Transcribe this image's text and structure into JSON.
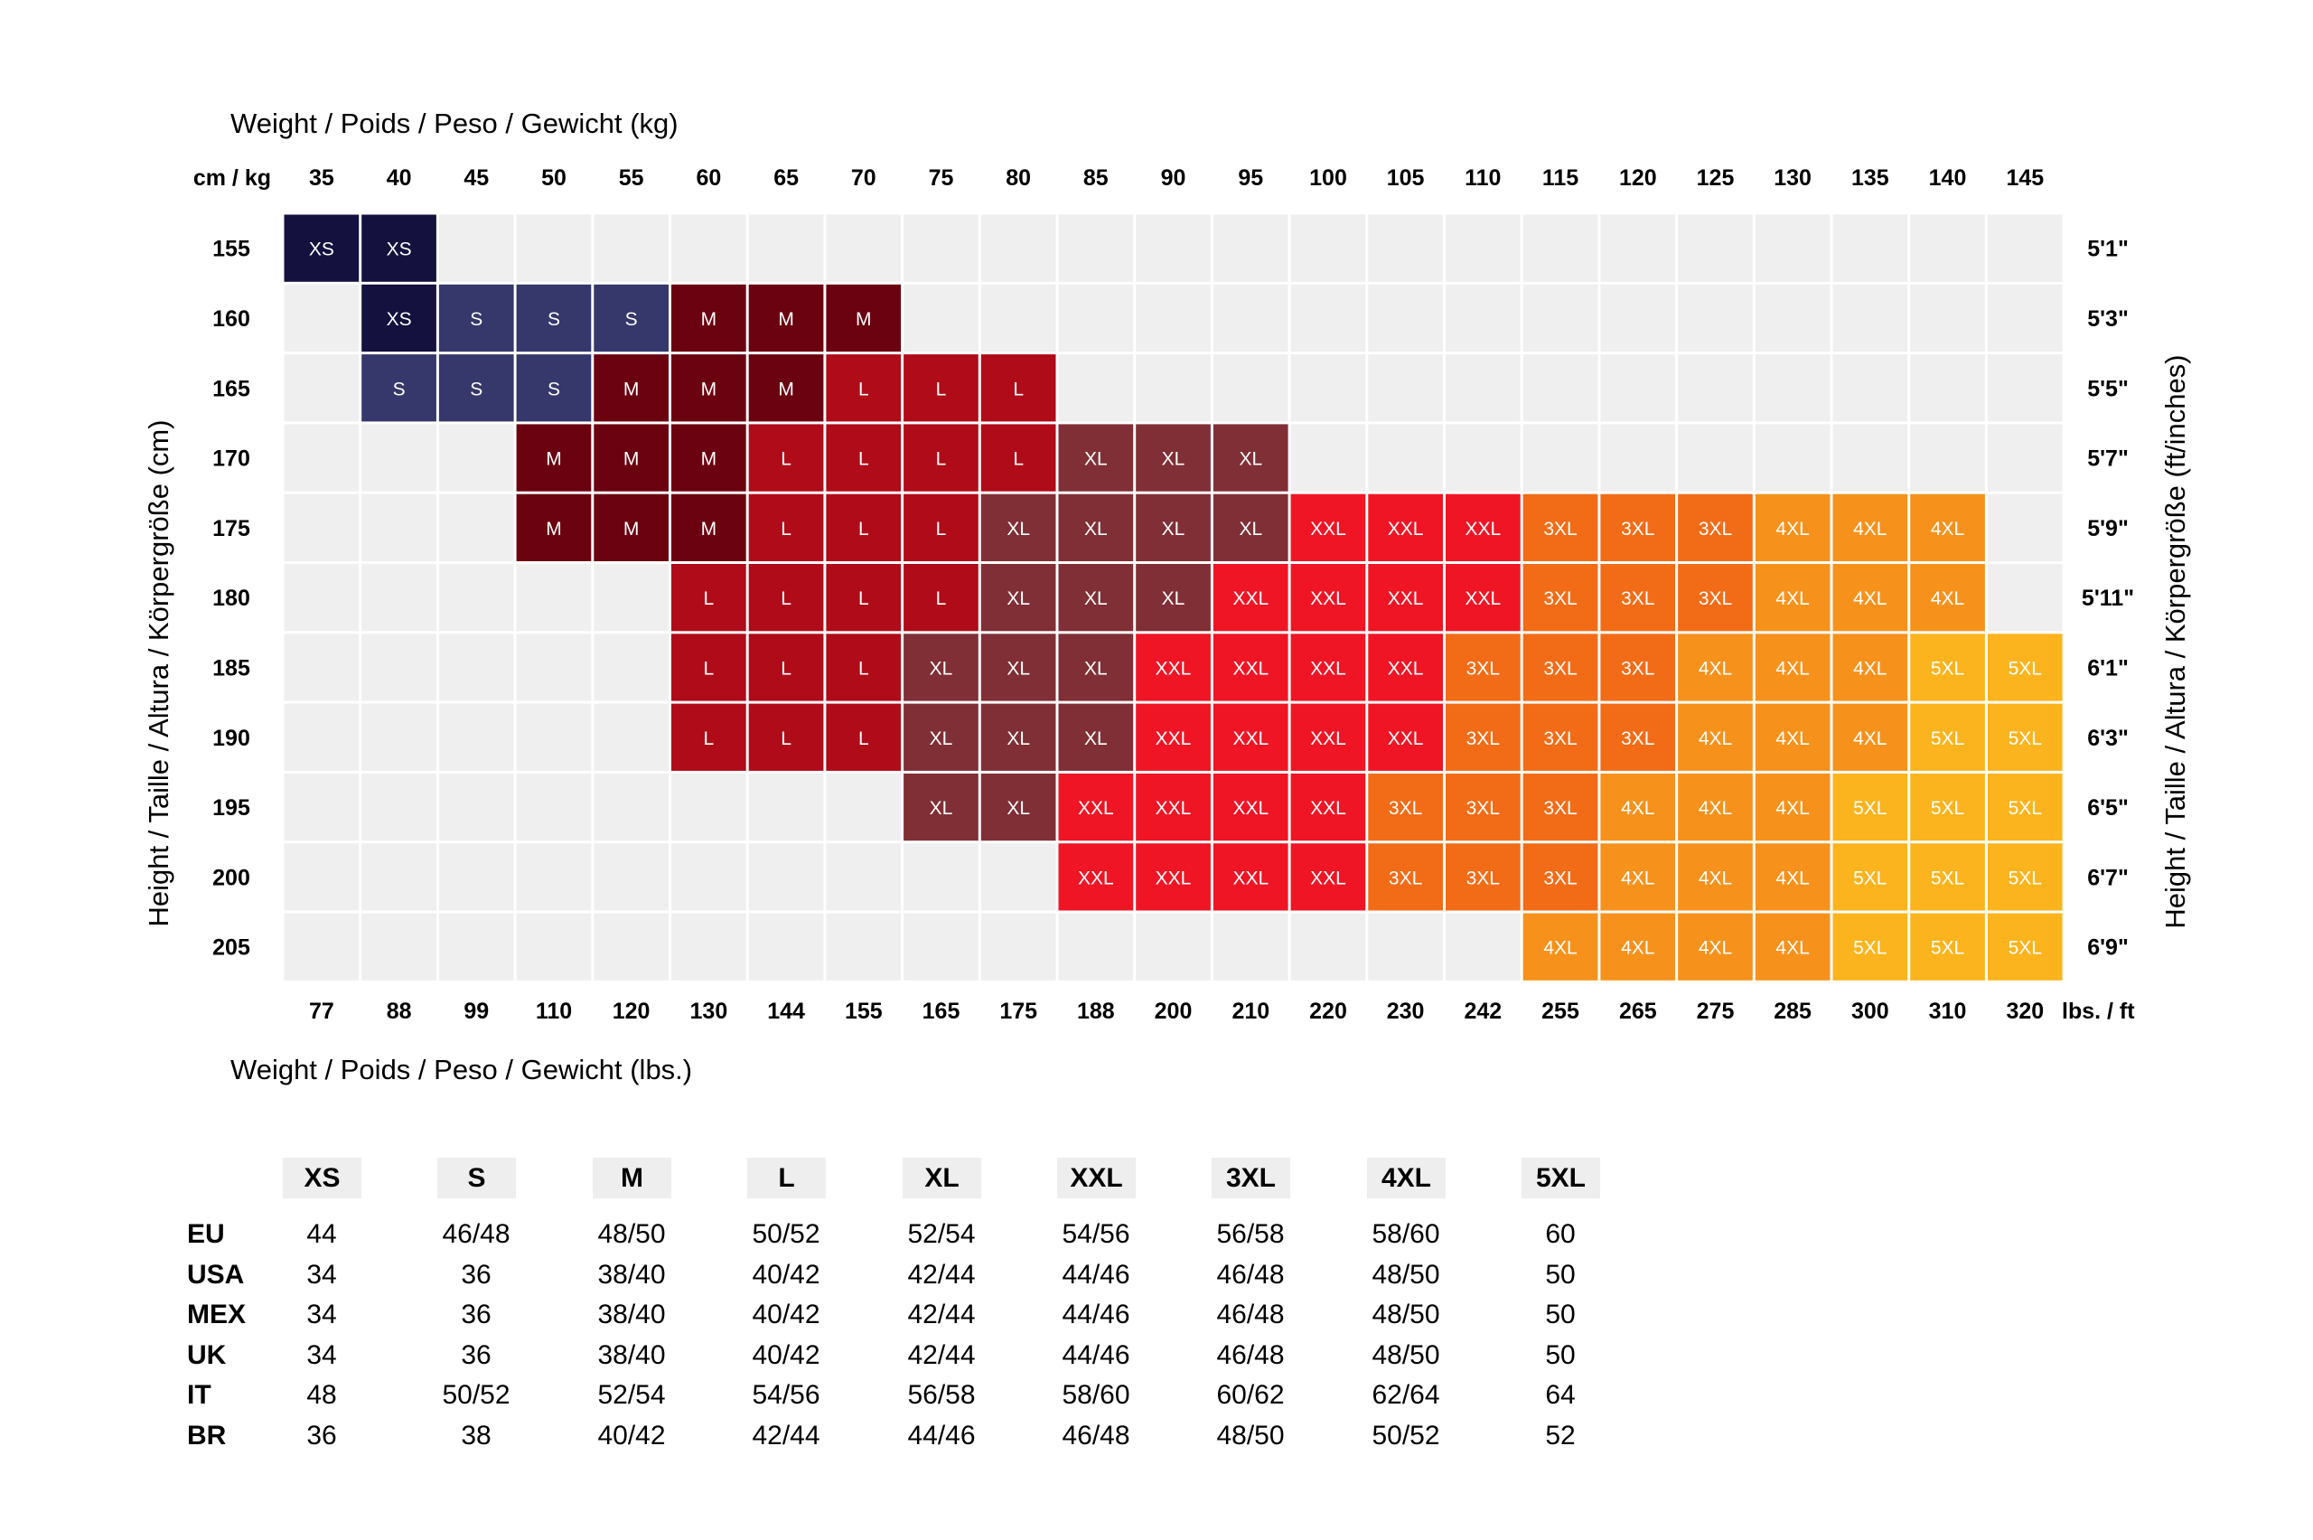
{
  "chart_data": {
    "type": "heatmap",
    "title_top": "Weight / Poids / Peso / Gewicht (kg)",
    "title_bottom": "Weight / Poids / Peso / Gewicht (lbs.)",
    "ylabel_left": "Height / Taille / Altura / Körpergröße (cm)",
    "ylabel_right": "Height / Taille / Altura / Körpergröße (ft/inches)",
    "corner_top": "cm / kg",
    "corner_bottom": "lbs. / ft",
    "kg": [
      "35",
      "40",
      "45",
      "50",
      "55",
      "60",
      "65",
      "70",
      "75",
      "80",
      "85",
      "90",
      "95",
      "100",
      "105",
      "110",
      "115",
      "120",
      "125",
      "130",
      "135",
      "140",
      "145"
    ],
    "lbs": [
      "77",
      "88",
      "99",
      "110",
      "120",
      "130",
      "144",
      "155",
      "165",
      "175",
      "188",
      "200",
      "210",
      "220",
      "230",
      "242",
      "255",
      "265",
      "275",
      "285",
      "300",
      "310",
      "320"
    ],
    "cm": [
      "155",
      "160",
      "165",
      "170",
      "175",
      "180",
      "185",
      "190",
      "195",
      "200",
      "205"
    ],
    "ft": [
      "5'1\"",
      "5'3\"",
      "5'5\"",
      "5'7\"",
      "5'9\"",
      "5'11\"",
      "6'1\"",
      "6'3\"",
      "6'5\"",
      "6'7\"",
      "6'9\""
    ],
    "size_colors": {
      "XS": "#14113f",
      "S": "#36376b",
      "M": "#6b0210",
      "L": "#b00b18",
      "XL": "#802f36",
      "XXL": "#ef1525",
      "3XL": "#f26c17",
      "4XL": "#f6921c",
      "5XL": "#fbb41d"
    },
    "empty_color": "#efefef",
    "grid": [
      [
        "XS",
        "XS",
        "",
        "",
        "",
        "",
        "",
        "",
        "",
        "",
        "",
        "",
        "",
        "",
        "",
        "",
        "",
        "",
        "",
        "",
        "",
        "",
        ""
      ],
      [
        "",
        "XS",
        "S",
        "S",
        "S",
        "M",
        "M",
        "M",
        "",
        "",
        "",
        "",
        "",
        "",
        "",
        "",
        "",
        "",
        "",
        "",
        "",
        "",
        ""
      ],
      [
        "",
        "S",
        "S",
        "S",
        "M",
        "M",
        "M",
        "L",
        "L",
        "L",
        "",
        "",
        "",
        "",
        "",
        "",
        "",
        "",
        "",
        "",
        "",
        "",
        ""
      ],
      [
        "",
        "",
        "",
        "M",
        "M",
        "M",
        "L",
        "L",
        "L",
        "L",
        "XL",
        "XL",
        "XL",
        "",
        "",
        "",
        "",
        "",
        "",
        "",
        "",
        "",
        ""
      ],
      [
        "",
        "",
        "",
        "M",
        "M",
        "M",
        "L",
        "L",
        "L",
        "XL",
        "XL",
        "XL",
        "XL",
        "XXL",
        "XXL",
        "XXL",
        "3XL",
        "3XL",
        "3XL",
        "4XL",
        "4XL",
        "4XL",
        ""
      ],
      [
        "",
        "",
        "",
        "",
        "",
        "L",
        "L",
        "L",
        "L",
        "XL",
        "XL",
        "XL",
        "XXL",
        "XXL",
        "XXL",
        "XXL",
        "3XL",
        "3XL",
        "3XL",
        "4XL",
        "4XL",
        "4XL",
        ""
      ],
      [
        "",
        "",
        "",
        "",
        "",
        "L",
        "L",
        "L",
        "XL",
        "XL",
        "XL",
        "XXL",
        "XXL",
        "XXL",
        "XXL",
        "3XL",
        "3XL",
        "3XL",
        "4XL",
        "4XL",
        "4XL",
        "5XL",
        "5XL"
      ],
      [
        "",
        "",
        "",
        "",
        "",
        "L",
        "L",
        "L",
        "XL",
        "XL",
        "XL",
        "XXL",
        "XXL",
        "XXL",
        "XXL",
        "3XL",
        "3XL",
        "3XL",
        "4XL",
        "4XL",
        "4XL",
        "5XL",
        "5XL"
      ],
      [
        "",
        "",
        "",
        "",
        "",
        "",
        "",
        "",
        "XL",
        "XL",
        "XXL",
        "XXL",
        "XXL",
        "XXL",
        "3XL",
        "3XL",
        "3XL",
        "4XL",
        "4XL",
        "4XL",
        "5XL",
        "5XL",
        "5XL"
      ],
      [
        "",
        "",
        "",
        "",
        "",
        "",
        "",
        "",
        "",
        "",
        "XXL",
        "XXL",
        "XXL",
        "XXL",
        "3XL",
        "3XL",
        "3XL",
        "4XL",
        "4XL",
        "4XL",
        "5XL",
        "5XL",
        "5XL"
      ],
      [
        "",
        "",
        "",
        "",
        "",
        "",
        "",
        "",
        "",
        "",
        "",
        "",
        "",
        "",
        "",
        "",
        "4XL",
        "4XL",
        "4XL",
        "4XL",
        "5XL",
        "5XL",
        "5XL"
      ]
    ]
  },
  "conversion": {
    "sizes": [
      "XS",
      "S",
      "M",
      "L",
      "XL",
      "XXL",
      "3XL",
      "4XL",
      "5XL"
    ],
    "rows": [
      {
        "region": "EU",
        "values": [
          "44",
          "46/48",
          "48/50",
          "50/52",
          "52/54",
          "54/56",
          "56/58",
          "58/60",
          "60"
        ]
      },
      {
        "region": "USA",
        "values": [
          "34",
          "36",
          "38/40",
          "40/42",
          "42/44",
          "44/46",
          "46/48",
          "48/50",
          "50"
        ]
      },
      {
        "region": "MEX",
        "values": [
          "34",
          "36",
          "38/40",
          "40/42",
          "42/44",
          "44/46",
          "46/48",
          "48/50",
          "50"
        ]
      },
      {
        "region": "UK",
        "values": [
          "34",
          "36",
          "38/40",
          "40/42",
          "42/44",
          "44/46",
          "46/48",
          "48/50",
          "50"
        ]
      },
      {
        "region": "IT",
        "values": [
          "48",
          "50/52",
          "52/54",
          "54/56",
          "56/58",
          "58/60",
          "60/62",
          "62/64",
          "64"
        ]
      },
      {
        "region": "BR",
        "values": [
          "36",
          "38",
          "40/42",
          "42/44",
          "44/46",
          "46/48",
          "48/50",
          "50/52",
          "52"
        ]
      }
    ]
  }
}
